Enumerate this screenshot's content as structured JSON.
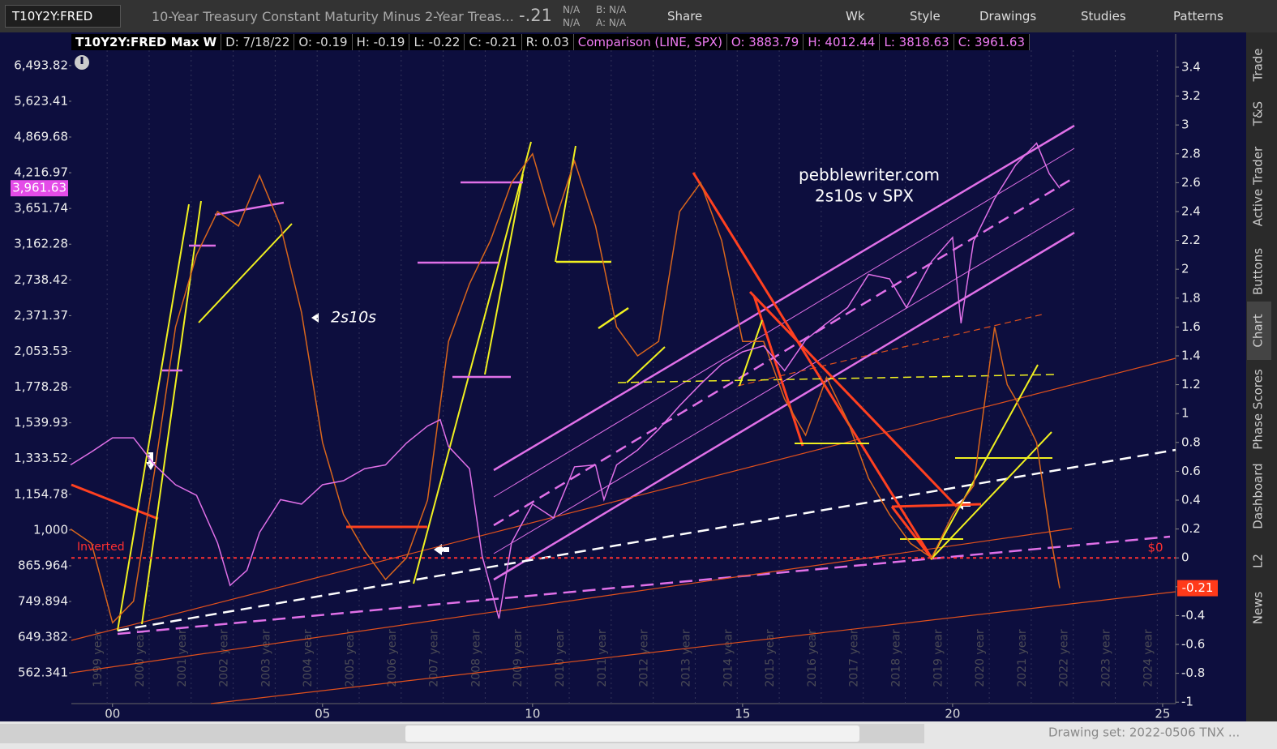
{
  "toolbar": {
    "symbol": "T10Y2Y:FRED",
    "description": "10-Year Treasury Constant Maturity Minus 2-Year Treas...",
    "last": "-.21",
    "bid_ask": [
      "N/A",
      "N/A"
    ],
    "bid": "B: N/A",
    "ask": "A: N/A",
    "buttons": [
      "Share",
      "Wk",
      "Style",
      "Drawings",
      "Studies",
      "Patterns"
    ]
  },
  "info_bar": {
    "main": [
      "T10Y2Y:FRED Max W",
      "D: 7/18/22",
      "O: -0.19",
      "H: -0.19",
      "L: -0.22",
      "C: -0.21",
      "R: 0.03"
    ],
    "comparison": [
      "Comparison (LINE, SPX)",
      "O: 3883.79",
      "H: 4012.44",
      "L: 3818.63",
      "C: 3961.63"
    ]
  },
  "side_tabs": [
    "Trade",
    "T&S",
    "Active Trader",
    "Buttons",
    "Chart",
    "Phase Scores",
    "Dashboard",
    "L2",
    "News"
  ],
  "footer": {
    "drawing_set": "Drawing set: 2022-0506 TNX ..."
  },
  "chart_data": {
    "type": "line",
    "annotations": [
      "pebblewriter.com",
      "2s10s v SPX",
      "2s10s",
      "Inverted"
    ],
    "xlim": [
      1999.02,
      2025.31
    ],
    "xticks": [
      {
        "value": 2000,
        "label": "00"
      },
      {
        "value": 2005,
        "label": "05"
      },
      {
        "value": 2010,
        "label": "10"
      },
      {
        "value": 2015,
        "label": "15"
      },
      {
        "value": 2020,
        "label": "20"
      },
      {
        "value": 2025,
        "label": "25"
      }
    ],
    "year_ticks": [
      {
        "value": 1999,
        "label": "1999 year"
      },
      {
        "value": 2000,
        "label": "2000 year"
      },
      {
        "value": 2001,
        "label": "2001 year"
      },
      {
        "value": 2002,
        "label": "2002 year"
      },
      {
        "value": 2003,
        "label": "2003 year"
      },
      {
        "value": 2004,
        "label": "2004 year"
      },
      {
        "value": 2005,
        "label": "2005 year"
      },
      {
        "value": 2006,
        "label": "2006 year"
      },
      {
        "value": 2007,
        "label": "2007 year"
      },
      {
        "value": 2008,
        "label": "2008 year"
      },
      {
        "value": 2009,
        "label": "2009 year"
      },
      {
        "value": 2010,
        "label": "2010 year"
      },
      {
        "value": 2011,
        "label": "2011 year"
      },
      {
        "value": 2012,
        "label": "2012 year"
      },
      {
        "value": 2013,
        "label": "2013 year"
      },
      {
        "value": 2014,
        "label": "2014 year"
      },
      {
        "value": 2015,
        "label": "2015 year"
      },
      {
        "value": 2016,
        "label": "2016 year"
      },
      {
        "value": 2017,
        "label": "2017 year"
      },
      {
        "value": 2018,
        "label": "2018 year"
      },
      {
        "value": 2019,
        "label": "2019 year"
      },
      {
        "value": 2020,
        "label": "2020 year"
      },
      {
        "value": 2021,
        "label": "2021 year"
      },
      {
        "value": 2022,
        "label": "2022 year"
      },
      {
        "value": 2023,
        "label": "2023 year"
      },
      {
        "value": 2024,
        "label": "2024 year"
      }
    ],
    "ylim": [
      497,
      7372
    ],
    "yscale": "log",
    "yticks": [
      {
        "value": 6493.82,
        "label": "6,493.82"
      },
      {
        "value": 5623.41,
        "label": "5,623.41"
      },
      {
        "value": 4869.68,
        "label": "4,869.68"
      },
      {
        "value": 4216.97,
        "label": "4,216.97"
      },
      {
        "value": 3651.74,
        "label": "3,651.74"
      },
      {
        "value": 3162.28,
        "label": "3,162.28"
      },
      {
        "value": 2738.42,
        "label": "2,738.42"
      },
      {
        "value": 2371.37,
        "label": "2,371.37"
      },
      {
        "value": 2053.53,
        "label": "2,053.53"
      },
      {
        "value": 1778.28,
        "label": "1,778.28"
      },
      {
        "value": 1539.93,
        "label": "1,539.93"
      },
      {
        "value": 1333.52,
        "label": "1,333.52"
      },
      {
        "value": 1154.78,
        "label": "1,154.78"
      },
      {
        "value": 1000,
        "label": "1,000"
      },
      865.964,
      749.894,
      649.382,
      562.341
    ],
    "y2lim": [
      -1.01,
      3.63
    ],
    "y2ticks": [
      3.4,
      3.2,
      3,
      2.8,
      2.6,
      2.4,
      2.2,
      2,
      1.8,
      1.6,
      1.4,
      1.2,
      1,
      0.8,
      0.6,
      0.4,
      0.2,
      0,
      -0.2,
      -0.4,
      -0.6,
      -0.8,
      -1
    ],
    "zero_line": {
      "value": 0,
      "label": "$0"
    },
    "last_labels": {
      "spx": {
        "value": 3961.63,
        "label": "3,961.63"
      },
      "t10y2y": -0.21
    },
    "series": [
      {
        "name": "T10Y2Y:FRED",
        "color": "#d9661c",
        "axis": "y2",
        "x": [
          1999.0,
          1999.5,
          2000.0,
          2000.5,
          2001.0,
          2001.5,
          2002.0,
          2002.5,
          2003.0,
          2003.5,
          2004.0,
          2004.5,
          2005.0,
          2005.5,
          2006.0,
          2006.5,
          2007.0,
          2007.5,
          2008.0,
          2008.5,
          2009.0,
          2009.5,
          2010.0,
          2010.5,
          2011.0,
          2011.5,
          2012.0,
          2012.5,
          2013.0,
          2013.5,
          2014.0,
          2014.5,
          2015.0,
          2015.5,
          2016.0,
          2016.5,
          2017.0,
          2017.5,
          2018.0,
          2018.5,
          2019.0,
          2019.5,
          2020.0,
          2020.5,
          2021.0,
          2021.3,
          2021.5,
          2022.0,
          2022.3,
          2022.55
        ],
        "values": [
          0.2,
          0.1,
          -0.45,
          -0.3,
          0.6,
          1.6,
          2.1,
          2.4,
          2.3,
          2.65,
          2.3,
          1.7,
          0.8,
          0.3,
          0.05,
          -0.15,
          0.0,
          0.4,
          1.5,
          1.9,
          2.2,
          2.6,
          2.8,
          2.3,
          2.75,
          2.3,
          1.6,
          1.4,
          1.5,
          2.4,
          2.6,
          2.2,
          1.5,
          1.5,
          1.1,
          0.85,
          1.25,
          0.95,
          0.55,
          0.3,
          0.1,
          0.0,
          0.3,
          0.5,
          1.6,
          1.2,
          1.1,
          0.8,
          0.2,
          -0.21
        ]
      },
      {
        "name": "SPX",
        "color": "#e070e8",
        "axis": "y",
        "x": [
          1999.0,
          1999.5,
          2000.0,
          2000.5,
          2001.0,
          2001.5,
          2002.0,
          2002.5,
          2002.8,
          2003.2,
          2003.5,
          2004.0,
          2004.5,
          2005.0,
          2005.5,
          2006.0,
          2006.5,
          2007.0,
          2007.5,
          2007.8,
          2008.0,
          2008.5,
          2008.8,
          2009.2,
          2009.5,
          2010.0,
          2010.5,
          2011.0,
          2011.5,
          2011.7,
          2012.0,
          2012.5,
          2013.0,
          2013.5,
          2014.0,
          2014.5,
          2015.0,
          2015.5,
          2016.0,
          2016.5,
          2017.0,
          2017.5,
          2018.0,
          2018.5,
          2018.9,
          2019.5,
          2020.0,
          2020.2,
          2020.5,
          2021.0,
          2021.5,
          2022.0,
          2022.3,
          2022.55
        ],
        "values": [
          1300,
          1370,
          1450,
          1450,
          1300,
          1200,
          1150,
          950,
          800,
          850,
          990,
          1130,
          1110,
          1200,
          1220,
          1280,
          1300,
          1420,
          1520,
          1560,
          1400,
          1280,
          900,
          700,
          950,
          1110,
          1050,
          1290,
          1300,
          1130,
          1300,
          1380,
          1500,
          1650,
          1800,
          1950,
          2050,
          2100,
          1900,
          2150,
          2300,
          2450,
          2800,
          2750,
          2450,
          2950,
          3250,
          2300,
          3200,
          3800,
          4350,
          4750,
          4200,
          3961.63
        ]
      }
    ]
  }
}
